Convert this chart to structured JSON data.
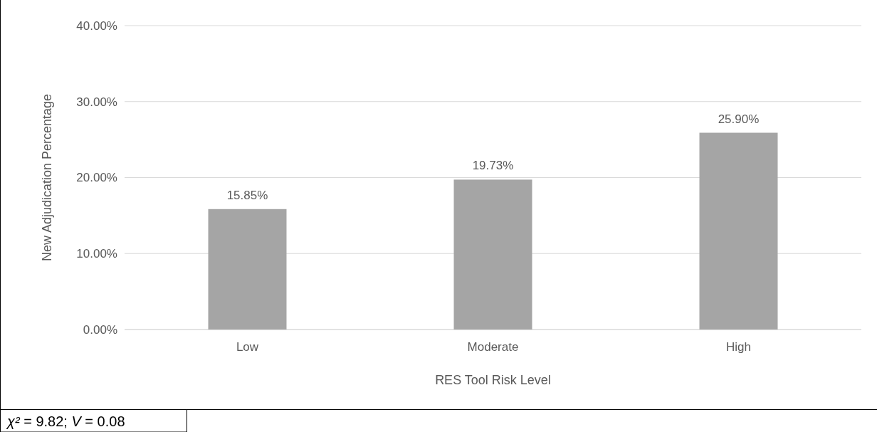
{
  "chart_data": {
    "type": "bar",
    "xlabel": "RES Tool Risk Level",
    "ylabel": "New Adjudication Percentage",
    "categories": [
      "Low",
      "Moderate",
      "High"
    ],
    "values": [
      15.85,
      19.73,
      25.9
    ],
    "color": "#a5a5a5",
    "value_labels": [
      "15.85%",
      "19.73%",
      "25.90%"
    ],
    "ylim": [
      0,
      40
    ],
    "yticks": [
      {
        "value": 0,
        "label": "0.00%"
      },
      {
        "value": 10,
        "label": "10.00%"
      },
      {
        "value": 20,
        "label": "20.00%"
      },
      {
        "value": 30,
        "label": "30.00%"
      },
      {
        "value": 40,
        "label": "40.00%"
      }
    ],
    "grid": "y",
    "annotations": [
      "χ² = 9.82; V = 0.08"
    ]
  }
}
